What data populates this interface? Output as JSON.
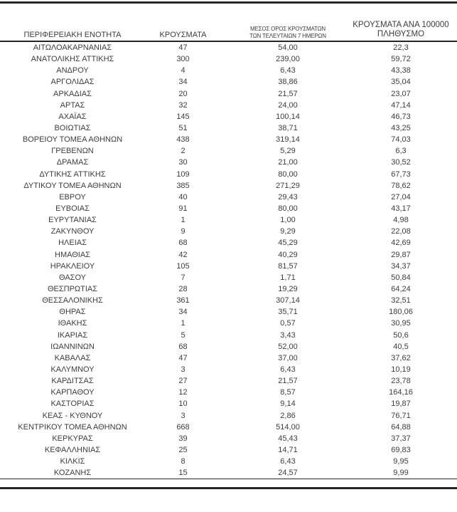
{
  "colors": {
    "text": "#3d3d3d",
    "rule": "#262626",
    "background": "#ffffff"
  },
  "table": {
    "headers": {
      "region": "ΠΕΡΙΦΕΡΕΙΑΚΗ ΕΝΟΤΗΤΑ",
      "cases": "ΚΡΟΥΣΜΑΤΑ",
      "avg7_line1": "ΜΕΣΟΣ ΟΡΟΣ ΚΡΟΥΣΜΑΤΩΝ",
      "avg7_line2": "ΤΩΝ ΤΕΛΕΥΤΑΙΩΝ 7 ΗΜΕΡΩΝ",
      "per100k_line1": "ΚΡΟΥΣΜΑΤΑ ΑΝΑ 100000",
      "per100k_line2": "ΠΛΗΘΥΣΜΟ"
    },
    "rows": [
      {
        "region": "ΑΙΤΩΛΟΑΚΑΡΝΑΝΙΑΣ",
        "cases": "47",
        "avg7": "54,00",
        "per100k": "22,3"
      },
      {
        "region": "ΑΝΑΤΟΛΙΚΗΣ ΑΤΤΙΚΗΣ",
        "cases": "300",
        "avg7": "239,00",
        "per100k": "59,72"
      },
      {
        "region": "ΑΝΔΡΟΥ",
        "cases": "4",
        "avg7": "6,43",
        "per100k": "43,38"
      },
      {
        "region": "ΑΡΓΟΛΙΔΑΣ",
        "cases": "34",
        "avg7": "38,86",
        "per100k": "35,04"
      },
      {
        "region": "ΑΡΚΑΔΙΑΣ",
        "cases": "20",
        "avg7": "21,57",
        "per100k": "23,07"
      },
      {
        "region": "ΑΡΤΑΣ",
        "cases": "32",
        "avg7": "24,00",
        "per100k": "47,14"
      },
      {
        "region": "ΑΧΑΪΑΣ",
        "cases": "145",
        "avg7": "100,14",
        "per100k": "46,73"
      },
      {
        "region": "ΒΟΙΩΤΙΑΣ",
        "cases": "51",
        "avg7": "38,71",
        "per100k": "43,25"
      },
      {
        "region": "ΒΟΡΕΙΟΥ ΤΟΜΕΑ ΑΘΗΝΩΝ",
        "cases": "438",
        "avg7": "319,14",
        "per100k": "74,03"
      },
      {
        "region": "ΓΡΕΒΕΝΩΝ",
        "cases": "2",
        "avg7": "5,29",
        "per100k": "6,3"
      },
      {
        "region": "ΔΡΑΜΑΣ",
        "cases": "30",
        "avg7": "21,00",
        "per100k": "30,52"
      },
      {
        "region": "ΔΥΤΙΚΗΣ ΑΤΤΙΚΗΣ",
        "cases": "109",
        "avg7": "80,00",
        "per100k": "67,73"
      },
      {
        "region": "ΔΥΤΙΚΟΥ ΤΟΜΕΑ ΑΘΗΝΩΝ",
        "cases": "385",
        "avg7": "271,29",
        "per100k": "78,62"
      },
      {
        "region": "ΕΒΡΟΥ",
        "cases": "40",
        "avg7": "29,43",
        "per100k": "27,04"
      },
      {
        "region": "ΕΥΒΟΙΑΣ",
        "cases": "91",
        "avg7": "80,00",
        "per100k": "43,17"
      },
      {
        "region": "ΕΥΡΥΤΑΝΙΑΣ",
        "cases": "1",
        "avg7": "1,00",
        "per100k": "4,98"
      },
      {
        "region": "ΖΑΚΥΝΘΟΥ",
        "cases": "9",
        "avg7": "9,29",
        "per100k": "22,08"
      },
      {
        "region": "ΗΛΕΙΑΣ",
        "cases": "68",
        "avg7": "45,29",
        "per100k": "42,69"
      },
      {
        "region": "ΗΜΑΘΙΑΣ",
        "cases": "42",
        "avg7": "40,29",
        "per100k": "29,87"
      },
      {
        "region": "ΗΡΑΚΛΕΙΟΥ",
        "cases": "105",
        "avg7": "81,57",
        "per100k": "34,37"
      },
      {
        "region": "ΘΑΣΟΥ",
        "cases": "7",
        "avg7": "1,71",
        "per100k": "50,84"
      },
      {
        "region": "ΘΕΣΠΡΩΤΙΑΣ",
        "cases": "28",
        "avg7": "19,29",
        "per100k": "64,24"
      },
      {
        "region": "ΘΕΣΣΑΛΟΝΙΚΗΣ",
        "cases": "361",
        "avg7": "307,14",
        "per100k": "32,51"
      },
      {
        "region": "ΘΗΡΑΣ",
        "cases": "34",
        "avg7": "35,71",
        "per100k": "180,06"
      },
      {
        "region": "ΙΘΑΚΗΣ",
        "cases": "1",
        "avg7": "0,57",
        "per100k": "30,95"
      },
      {
        "region": "ΙΚΑΡΙΑΣ",
        "cases": "5",
        "avg7": "3,43",
        "per100k": "50,6"
      },
      {
        "region": "ΙΩΑΝΝΙΝΩΝ",
        "cases": "68",
        "avg7": "52,00",
        "per100k": "40,5"
      },
      {
        "region": "ΚΑΒΑΛΑΣ",
        "cases": "47",
        "avg7": "37,00",
        "per100k": "37,62"
      },
      {
        "region": "ΚΑΛΥΜΝΟΥ",
        "cases": "3",
        "avg7": "6,43",
        "per100k": "10,19"
      },
      {
        "region": "ΚΑΡΔΙΤΣΑΣ",
        "cases": "27",
        "avg7": "21,57",
        "per100k": "23,78"
      },
      {
        "region": "ΚΑΡΠΑΘΟΥ",
        "cases": "12",
        "avg7": "8,57",
        "per100k": "164,16"
      },
      {
        "region": "ΚΑΣΤΟΡΙΑΣ",
        "cases": "10",
        "avg7": "9,14",
        "per100k": "19,87"
      },
      {
        "region": "ΚΕΑΣ - ΚΥΘΝΟΥ",
        "cases": "3",
        "avg7": "2,86",
        "per100k": "76,71"
      },
      {
        "region": "ΚΕΝΤΡΙΚΟΥ ΤΟΜΕΑ ΑΘΗΝΩΝ",
        "cases": "668",
        "avg7": "514,00",
        "per100k": "64,88"
      },
      {
        "region": "ΚΕΡΚΥΡΑΣ",
        "cases": "39",
        "avg7": "45,43",
        "per100k": "37,37"
      },
      {
        "region": "ΚΕΦΑΛΛΗΝΙΑΣ",
        "cases": "25",
        "avg7": "14,71",
        "per100k": "69,83"
      },
      {
        "region": "ΚΙΛΚΙΣ",
        "cases": "8",
        "avg7": "6,43",
        "per100k": "9,95"
      },
      {
        "region": "ΚΟΖΑΝΗΣ",
        "cases": "15",
        "avg7": "24,57",
        "per100k": "9,99"
      }
    ]
  }
}
